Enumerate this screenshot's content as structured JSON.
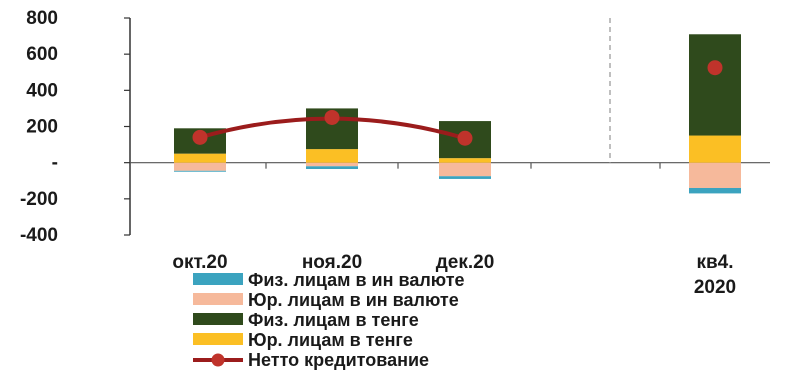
{
  "chart_data": {
    "type": "bar",
    "stacked": true,
    "categories": [
      "окт.20",
      "ноя.20",
      "дек.20",
      "кв4.|2020"
    ],
    "y_ticks": [
      "800",
      "600",
      "400",
      "200",
      "-",
      "-200",
      "-400"
    ],
    "ylim": [
      -400,
      800
    ],
    "series": [
      {
        "name": "Физ. лицам в ин валюте",
        "color": "#3ba3bf",
        "values": [
          -5,
          -15,
          -15,
          -30
        ]
      },
      {
        "name": "Юр. лицам в ин валюте",
        "color": "#f6b99b",
        "values": [
          -45,
          -20,
          -75,
          -140
        ]
      },
      {
        "name": "Физ. лицам в тенге",
        "color": "#2f4a1c",
        "values": [
          140,
          225,
          205,
          560
        ]
      },
      {
        "name": "Юр. лицам в тенге",
        "color": "#fbbf24",
        "values": [
          50,
          75,
          25,
          150
        ]
      }
    ],
    "line_series": {
      "name": "Нетто кредитование",
      "color": "#9b1c1c",
      "values": [
        140,
        250,
        135,
        525
      ]
    },
    "grid": false,
    "legend_position": "bottom"
  }
}
